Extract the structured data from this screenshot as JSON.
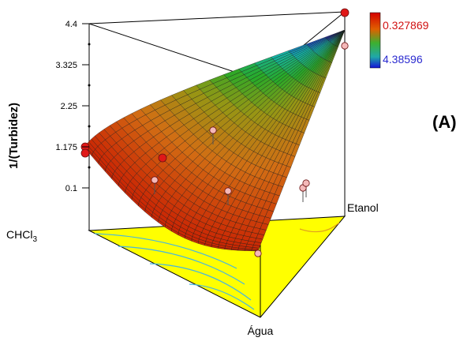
{
  "chart_data": {
    "type": "surface",
    "panel_label": "(A)",
    "zlabel": "1/(Turbidez)",
    "z_ticks": [
      "4.4",
      "3.325",
      "2.25",
      "1.175",
      "0.1"
    ],
    "zlim": [
      0.1,
      4.4
    ],
    "components": [
      "CHCl3",
      "Água",
      "Etanol"
    ],
    "legend": {
      "max": "0.327869",
      "min": "4.38596",
      "max_color": "#c00000",
      "min_color": "#1b1bd6"
    },
    "points": [
      {
        "z": 4.4,
        "highlight": true
      },
      {
        "z": 3.6,
        "highlight": false
      },
      {
        "z": 1.08,
        "highlight": true
      },
      {
        "z": 1.0,
        "highlight": true
      },
      {
        "z": 0.6,
        "highlight": true
      },
      {
        "z": 1.7,
        "highlight": false
      },
      {
        "z": 0.3,
        "highlight": false
      },
      {
        "z": 0.1,
        "highlight": false
      },
      {
        "z": -0.1,
        "highlight": false
      },
      {
        "z": 0.05,
        "highlight": false
      },
      {
        "z": 0.1,
        "highlight": false
      }
    ]
  }
}
